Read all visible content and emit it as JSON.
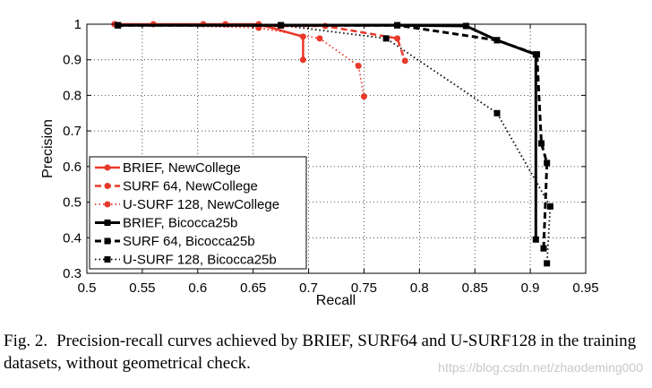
{
  "chart_data": {
    "type": "line",
    "title": "",
    "xlabel": "Recall",
    "ylabel": "Precision",
    "xlim": [
      0.5,
      0.95
    ],
    "ylim": [
      0.3,
      1.0
    ],
    "xticks": [
      "0.5",
      "0.55",
      "0.6",
      "0.65",
      "0.7",
      "0.75",
      "0.8",
      "0.85",
      "0.9",
      "0.95"
    ],
    "yticks": [
      "0.3",
      "0.4",
      "0.5",
      "0.6",
      "0.7",
      "0.8",
      "0.9",
      "1"
    ],
    "grid": true,
    "legend_position": "bottom-left",
    "series": [
      {
        "name": "BRIEF, NewCollege",
        "color": "#e8392a",
        "line": "solid",
        "marker": "circle",
        "x": [
          0.525,
          0.56,
          0.605,
          0.625,
          0.655,
          0.695,
          0.695
        ],
        "y": [
          1.0,
          1.0,
          1.0,
          1.0,
          1.0,
          0.965,
          0.9
        ]
      },
      {
        "name": "SURF 64, NewCollege",
        "color": "#e8392a",
        "line": "dashed",
        "marker": "circle",
        "x": [
          0.525,
          0.655,
          0.715,
          0.78,
          0.787
        ],
        "y": [
          1.0,
          0.995,
          0.995,
          0.96,
          0.897
        ]
      },
      {
        "name": "U-SURF 128, NewCollege",
        "color": "#e8392a",
        "line": "dotted",
        "marker": "circle",
        "x": [
          0.525,
          0.655,
          0.71,
          0.745,
          0.75
        ],
        "y": [
          1.0,
          0.99,
          0.96,
          0.883,
          0.797
        ]
      },
      {
        "name": "BRIEF, Bicocca25b",
        "color": "#000000",
        "line": "solid",
        "marker": "square",
        "x": [
          0.528,
          0.675,
          0.78,
          0.842,
          0.87,
          0.905,
          0.905
        ],
        "y": [
          0.997,
          0.997,
          0.997,
          0.995,
          0.955,
          0.915,
          0.395
        ]
      },
      {
        "name": "SURF 64, Bicocca25b",
        "color": "#000000",
        "line": "dashed",
        "marker": "square",
        "x": [
          0.528,
          0.675,
          0.78,
          0.87,
          0.906,
          0.91,
          0.915,
          0.912
        ],
        "y": [
          0.997,
          0.997,
          0.997,
          0.955,
          0.915,
          0.665,
          0.61,
          0.37
        ]
      },
      {
        "name": "U-SURF 128, Bicocca25b",
        "color": "#000000",
        "line": "dotted",
        "marker": "square",
        "x": [
          0.528,
          0.675,
          0.77,
          0.87,
          0.918,
          0.915
        ],
        "y": [
          0.997,
          0.997,
          0.96,
          0.75,
          0.488,
          0.328
        ]
      }
    ]
  },
  "caption": {
    "label": "Fig. 2.",
    "text": "Precision-recall curves achieved by BRIEF, SURF64 and U-SURF128 in the training datasets, without geometrical check."
  },
  "watermark": "https://blog.csdn.net/zhaodeming000"
}
